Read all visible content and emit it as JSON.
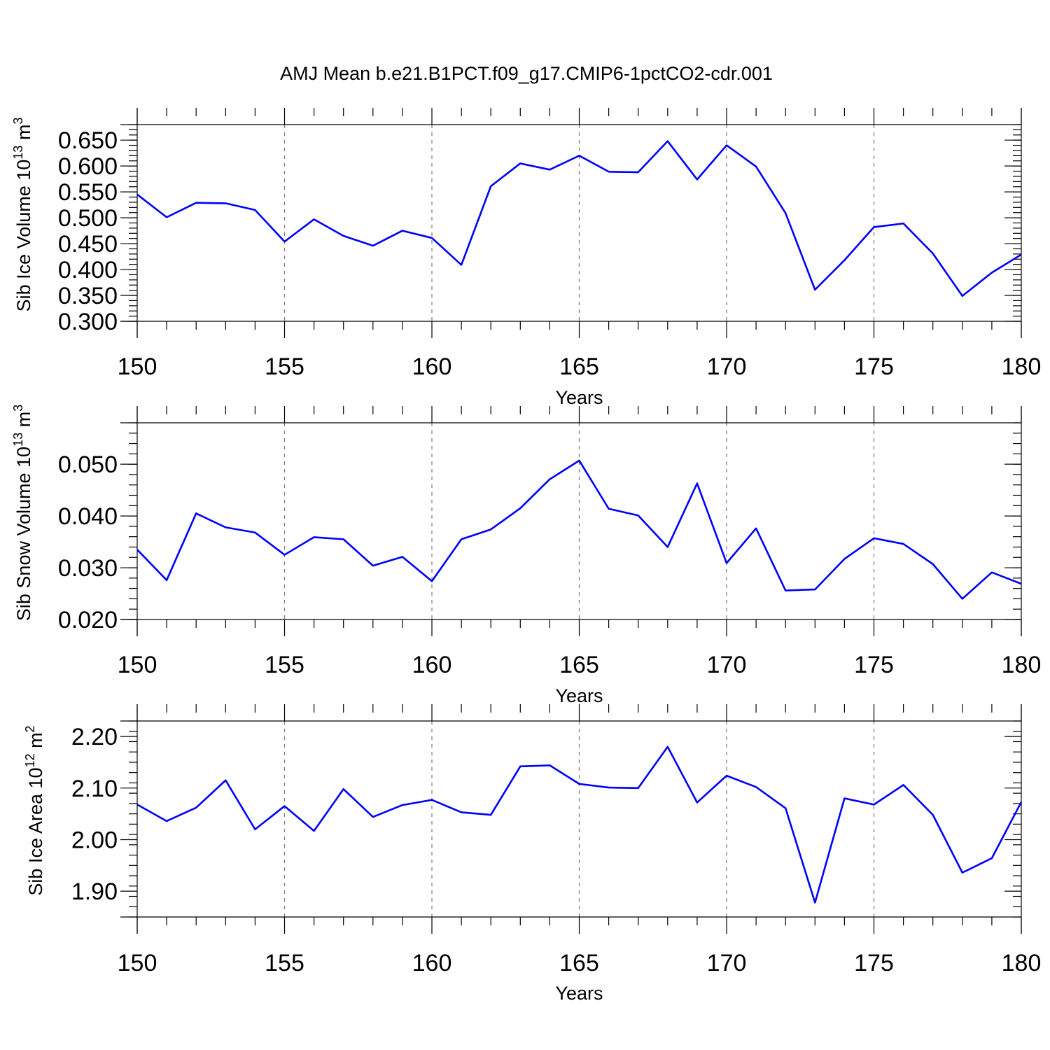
{
  "title": "AMJ Mean b.e21.B1PCT.f09_g17.CMIP6-1pctCO2-cdr.001",
  "chart_data": [
    {
      "type": "line",
      "xlabel": "Years",
      "ylabel": "Sib Ice Volume 10",
      "ylabel_exp": "13",
      "ylabel_unit": " m",
      "ylabel_unit_exp": "3",
      "x": [
        150,
        151,
        152,
        153,
        154,
        155,
        156,
        157,
        158,
        159,
        160,
        161,
        162,
        163,
        164,
        165,
        166,
        167,
        168,
        169,
        170,
        171,
        172,
        173,
        174,
        175,
        176,
        177,
        178,
        179,
        180
      ],
      "values": [
        0.545,
        0.501,
        0.529,
        0.528,
        0.515,
        0.454,
        0.497,
        0.465,
        0.446,
        0.475,
        0.461,
        0.409,
        0.561,
        0.605,
        0.593,
        0.62,
        0.589,
        0.588,
        0.648,
        0.574,
        0.64,
        0.599,
        0.509,
        0.361,
        0.418,
        0.482,
        0.489,
        0.431,
        0.349,
        0.394,
        0.429
      ],
      "xlim": [
        150,
        180
      ],
      "ylim": [
        0.3,
        0.68
      ],
      "xticks": [
        "150",
        "155",
        "160",
        "165",
        "170",
        "175",
        "180"
      ],
      "yticks": [
        "0.300",
        "0.350",
        "0.400",
        "0.450",
        "0.500",
        "0.550",
        "0.600",
        "0.650"
      ],
      "color": "#0000ff",
      "grid": "vertical dashed at major x ticks"
    },
    {
      "type": "line",
      "xlabel": "Years",
      "ylabel": "Sib Snow Volume 10",
      "ylabel_exp": "13",
      "ylabel_unit": " m",
      "ylabel_unit_exp": "3",
      "x": [
        150,
        151,
        152,
        153,
        154,
        155,
        156,
        157,
        158,
        159,
        160,
        161,
        162,
        163,
        164,
        165,
        166,
        167,
        168,
        169,
        170,
        171,
        172,
        173,
        174,
        175,
        176,
        177,
        178,
        179,
        180
      ],
      "values": [
        0.0335,
        0.0276,
        0.0405,
        0.0378,
        0.0368,
        0.0325,
        0.0359,
        0.0355,
        0.0304,
        0.0321,
        0.0274,
        0.0355,
        0.0374,
        0.0415,
        0.0471,
        0.0507,
        0.0414,
        0.0401,
        0.034,
        0.0463,
        0.0309,
        0.0376,
        0.0256,
        0.0258,
        0.0317,
        0.0357,
        0.0346,
        0.0307,
        0.024,
        0.0291,
        0.0269
      ],
      "xlim": [
        150,
        180
      ],
      "ylim": [
        0.02,
        0.058
      ],
      "xticks": [
        "150",
        "155",
        "160",
        "165",
        "170",
        "175",
        "180"
      ],
      "yticks": [
        "0.020",
        "0.030",
        "0.040",
        "0.050"
      ],
      "color": "#0000ff",
      "grid": "vertical dashed at major x ticks"
    },
    {
      "type": "line",
      "xlabel": "Years",
      "ylabel": "Sib Ice Area 10",
      "ylabel_exp": "12",
      "ylabel_unit": " m",
      "ylabel_unit_exp": "2",
      "x": [
        150,
        151,
        152,
        153,
        154,
        155,
        156,
        157,
        158,
        159,
        160,
        161,
        162,
        163,
        164,
        165,
        166,
        167,
        168,
        169,
        170,
        171,
        172,
        173,
        174,
        175,
        176,
        177,
        178,
        179,
        180
      ],
      "values": [
        2.068,
        2.036,
        2.062,
        2.115,
        2.02,
        2.065,
        2.017,
        2.098,
        2.044,
        2.067,
        2.077,
        2.053,
        2.048,
        2.142,
        2.144,
        2.108,
        2.101,
        2.1,
        2.18,
        2.072,
        2.124,
        2.102,
        2.061,
        1.878,
        2.08,
        2.068,
        2.106,
        2.048,
        1.936,
        1.964,
        2.073
      ],
      "xlim": [
        150,
        180
      ],
      "ylim": [
        1.85,
        2.23
      ],
      "xticks": [
        "150",
        "155",
        "160",
        "165",
        "170",
        "175",
        "180"
      ],
      "yticks": [
        "1.90",
        "2.00",
        "2.10",
        "2.20"
      ],
      "color": "#0000ff",
      "grid": "vertical dashed at major x ticks"
    }
  ]
}
